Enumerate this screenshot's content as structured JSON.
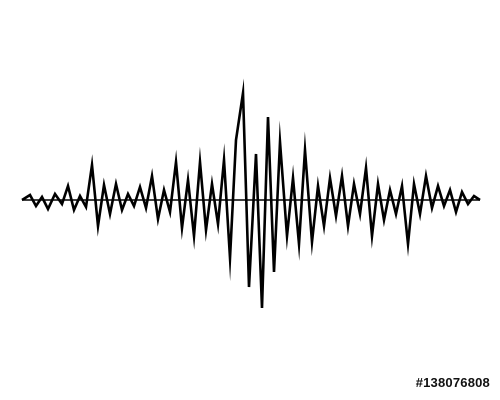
{
  "waveform": {
    "icon": "sound-wave-icon",
    "color": "#000000",
    "background": "#ffffff"
  },
  "footer": {
    "stock_id": "#138076808"
  }
}
